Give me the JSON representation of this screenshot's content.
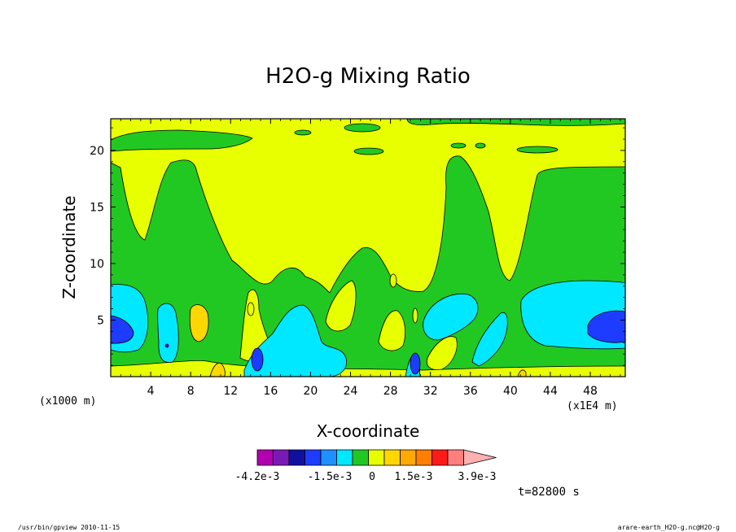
{
  "chart_data": {
    "type": "heatmap",
    "title": "H2O-g Mixing Ratio",
    "xlabel": "X-coordinate",
    "ylabel": "Z-coordinate",
    "x_unit_left": "(x1000 m)",
    "x_unit_right": "(x1E4 m)",
    "xlim": [
      0,
      51.5
    ],
    "ylim": [
      0,
      22.8
    ],
    "x_ticks": [
      "4",
      "8",
      "12",
      "16",
      "20",
      "24",
      "28",
      "32",
      "36",
      "40",
      "44",
      "48"
    ],
    "y_ticks": [
      "5",
      "10",
      "15",
      "20"
    ],
    "colorbar": {
      "labels": [
        "-4.2e-3",
        "-1.5e-3",
        "0",
        "1.5e-3",
        "3.9e-3"
      ],
      "colors": [
        "#b000b0",
        "#7a1ab5",
        "#1010a0",
        "#1e3cff",
        "#1e90ff",
        "#00e8ff",
        "#22c822",
        "#e8ff00",
        "#ffd700",
        "#ffaa00",
        "#ff7f00",
        "#ff1a1a",
        "#ff7f7f",
        "#ffb0b0"
      ]
    },
    "time_label": "t=82800 s",
    "background_level_color": "#e8ff00",
    "regions": [
      {
        "level": "green",
        "color": "#22c822",
        "description": "lower band and convective columns"
      },
      {
        "level": "cyan",
        "color": "#00e8ff",
        "description": "moist lower-layer pockets"
      },
      {
        "level": "blue",
        "color": "#1e3cff",
        "description": "strongest moist cores near surface"
      },
      {
        "level": "orange",
        "color": "#ffd700",
        "description": "dry pockets near surface"
      }
    ]
  },
  "footer": {
    "left": "/usr/bin/gpview  2010-11-15",
    "right": "arare-earth_H2O-g.nc@H2O-g"
  }
}
